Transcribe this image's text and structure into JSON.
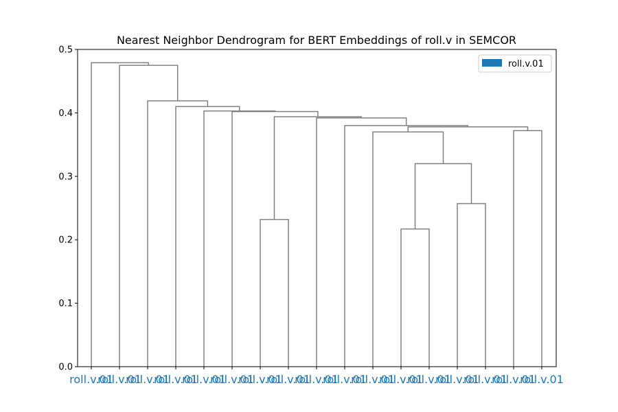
{
  "chart_data": {
    "type": "dendrogram",
    "title": "Nearest Neighbor Dendrogram for BERT Embeddings of roll.v in SEMCOR",
    "xlabel": "",
    "ylabel": "",
    "ylim": [
      0,
      0.5
    ],
    "yticks": [
      0.0,
      0.1,
      0.2,
      0.3,
      0.4,
      0.5
    ],
    "ytick_labels": [
      "0.0",
      "0.1",
      "0.2",
      "0.3",
      "0.4",
      "0.5"
    ],
    "grid": false,
    "legend": {
      "placement": "upper right",
      "entries": [
        {
          "label": "roll.v.01",
          "color": "#1f77b4"
        }
      ]
    },
    "colors": {
      "link": "#808080",
      "leaf_label": "#1f77b4",
      "axis": "#000000"
    },
    "leaf_labels": [
      "roll.v.01",
      "roll.v.01",
      "roll.v.01",
      "roll.v.01",
      "roll.v.01",
      "roll.v.01",
      "roll.v.01",
      "roll.v.01",
      "roll.v.01",
      "roll.v.01",
      "roll.v.01",
      "roll.v.01",
      "roll.v.01",
      "roll.v.01",
      "roll.v.01",
      "roll.v.01",
      "roll.v.01"
    ],
    "links": [
      {
        "left": 6,
        "right": 7,
        "height": 0.232
      },
      {
        "left": 11,
        "right": 12,
        "height": 0.217
      },
      {
        "left": 13,
        "right": 14,
        "height": 0.257
      },
      {
        "left": 11.5,
        "right": 13.5,
        "height": 0.32
      },
      {
        "left": 10,
        "right": 12.5,
        "height": 0.37
      },
      {
        "left": 15,
        "right": 16,
        "height": 0.372
      },
      {
        "left": 11.25,
        "right": 15.5,
        "height": 0.378
      },
      {
        "left": 9,
        "right": 13.375,
        "height": 0.38
      },
      {
        "left": 8,
        "right": 11.1875,
        "height": 0.392
      },
      {
        "left": 6.5,
        "right": 9.59375,
        "height": 0.394
      },
      {
        "left": 5,
        "right": 8.046875,
        "height": 0.402
      },
      {
        "left": 4,
        "right": 6.5234375,
        "height": 0.403
      },
      {
        "left": 3,
        "right": 5.26171875,
        "height": 0.41
      },
      {
        "left": 2,
        "right": 4.130859375,
        "height": 0.419
      },
      {
        "left": 1,
        "right": 3.0654296875,
        "height": 0.475
      },
      {
        "left": 0,
        "right": 2.03271484375,
        "height": 0.479
      }
    ]
  }
}
